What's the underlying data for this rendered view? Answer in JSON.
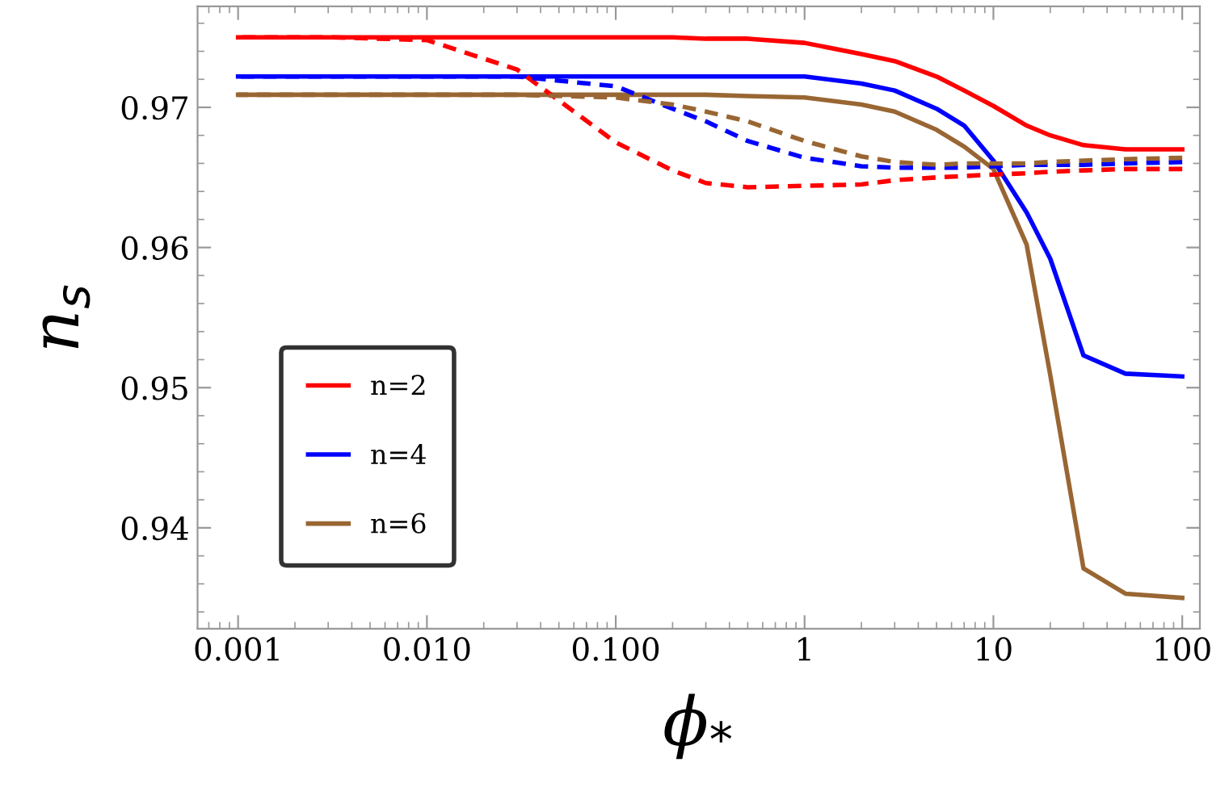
{
  "chart_data": {
    "type": "line",
    "xlabel": "ϕ$_{*}$",
    "ylabel": "n$_{s}$",
    "log": "x",
    "legend": "bottom left",
    "grid": false,
    "xlim": [
      0.00061,
      124
    ],
    "ylim": [
      0.9328,
      0.9772
    ],
    "xticks": [
      0.001,
      {
        "value": 0.01,
        "label": "0.010"
      },
      {
        "value": 0.1,
        "label": "0.100"
      },
      1,
      10,
      100
    ],
    "yticks": [
      0.94,
      0.95,
      0.96,
      0.97
    ],
    "x": [
      0.001,
      0.003,
      0.01,
      0.03,
      0.1,
      0.2,
      0.3,
      0.5,
      1,
      2,
      3,
      5,
      7,
      10,
      15,
      20,
      30,
      50,
      100
    ],
    "series": [
      {
        "name": "n=2",
        "color": "#ff0000",
        "line_style": "solid",
        "values": [
          0.975,
          0.975,
          0.975,
          0.975,
          0.975,
          0.975,
          0.9749,
          0.9749,
          0.9746,
          0.9738,
          0.9733,
          0.9722,
          0.9712,
          0.9701,
          0.9687,
          0.968,
          0.9673,
          0.967,
          0.967
        ]
      },
      {
        "name": "n=4",
        "color": "#0000ff",
        "line_style": "solid",
        "values": [
          0.9722,
          0.9722,
          0.9722,
          0.9722,
          0.9722,
          0.9722,
          0.9722,
          0.9722,
          0.9722,
          0.9717,
          0.9712,
          0.9699,
          0.9687,
          0.9662,
          0.9625,
          0.9592,
          0.9523,
          0.951,
          0.9508
        ]
      },
      {
        "name": "n=6",
        "color": "#996633",
        "line_style": "solid",
        "values": [
          0.9709,
          0.9709,
          0.9709,
          0.9709,
          0.9709,
          0.9709,
          0.9709,
          0.9708,
          0.9707,
          0.9702,
          0.9697,
          0.9684,
          0.9672,
          0.9656,
          0.9602,
          0.9509,
          0.9371,
          0.9353,
          0.935
        ]
      },
      {
        "color": "#ff0000",
        "line_style": "dashed",
        "values": [
          0.975,
          0.975,
          0.9748,
          0.9727,
          0.9675,
          0.9655,
          0.9646,
          0.9643,
          0.9644,
          0.9645,
          0.9648,
          0.965,
          0.9651,
          0.9652,
          0.9653,
          0.9654,
          0.9655,
          0.9656,
          0.9656
        ]
      },
      {
        "color": "#0000ff",
        "line_style": "dashed",
        "values": [
          0.9722,
          0.9722,
          0.9722,
          0.9722,
          0.9715,
          0.9699,
          0.969,
          0.9676,
          0.9664,
          0.9658,
          0.9657,
          0.9657,
          0.9657,
          0.9658,
          0.9659,
          0.9659,
          0.9659,
          0.966,
          0.9661
        ]
      },
      {
        "color": "#996633",
        "line_style": "dashed",
        "values": [
          0.9709,
          0.9709,
          0.9709,
          0.9709,
          0.9707,
          0.9702,
          0.9697,
          0.969,
          0.9676,
          0.9665,
          0.9661,
          0.9659,
          0.966,
          0.966,
          0.966,
          0.9661,
          0.9662,
          0.9663,
          0.9664
        ]
      }
    ]
  }
}
